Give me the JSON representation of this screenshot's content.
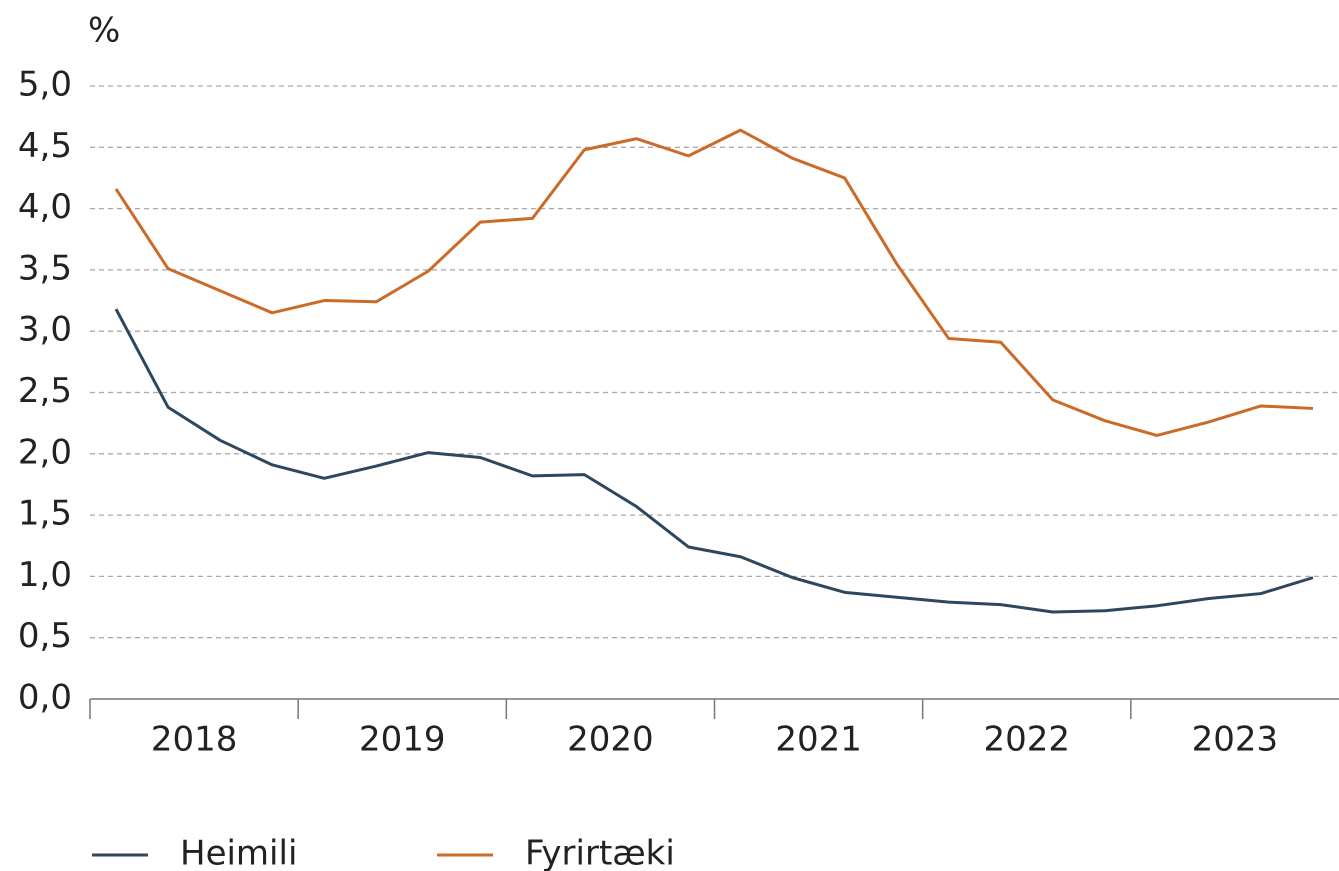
{
  "chart_data": {
    "type": "line",
    "y_unit": "%",
    "categories": [
      null,
      null,
      null,
      null,
      null,
      null,
      null,
      null,
      null,
      null,
      null,
      null,
      null,
      null,
      null,
      null,
      null,
      null,
      null,
      null,
      null,
      null,
      null,
      null
    ],
    "x_groups": [
      "2018",
      "2019",
      "2020",
      "2021",
      "2022",
      "2023"
    ],
    "series": [
      {
        "name": "Heimili",
        "color": "#2d475e",
        "values": [
          3.18,
          2.38,
          2.11,
          1.91,
          1.8,
          1.9,
          2.01,
          1.97,
          1.82,
          1.83,
          1.57,
          1.24,
          1.16,
          0.99,
          0.87,
          0.83,
          0.79,
          0.77,
          0.71,
          0.72,
          0.76,
          0.82,
          0.86,
          0.99
        ]
      },
      {
        "name": "Fyrirtæki",
        "color": "#cc6a28",
        "values": [
          4.16,
          3.51,
          3.33,
          3.15,
          3.25,
          3.24,
          3.49,
          3.89,
          3.92,
          4.48,
          4.57,
          4.43,
          4.64,
          4.41,
          4.25,
          3.55,
          2.94,
          2.91,
          2.44,
          2.27,
          2.15,
          2.26,
          2.39,
          2.37
        ]
      }
    ],
    "ylim": [
      0,
      5
    ],
    "yticks": [
      {
        "value": 0,
        "label": "0,0"
      },
      {
        "value": 0.5,
        "label": "0,5"
      },
      {
        "value": 1,
        "label": "1,0"
      },
      {
        "value": 1.5,
        "label": "1,5"
      },
      {
        "value": 2,
        "label": "2,0"
      },
      {
        "value": 2.5,
        "label": "2,5"
      },
      {
        "value": 3,
        "label": "3,0"
      },
      {
        "value": 3.5,
        "label": "3,5"
      },
      {
        "value": 4,
        "label": "4,0"
      },
      {
        "value": 4.5,
        "label": "4,5"
      },
      {
        "value": 5,
        "label": "5,0"
      }
    ],
    "grid": true,
    "legend": "bottom-left"
  }
}
